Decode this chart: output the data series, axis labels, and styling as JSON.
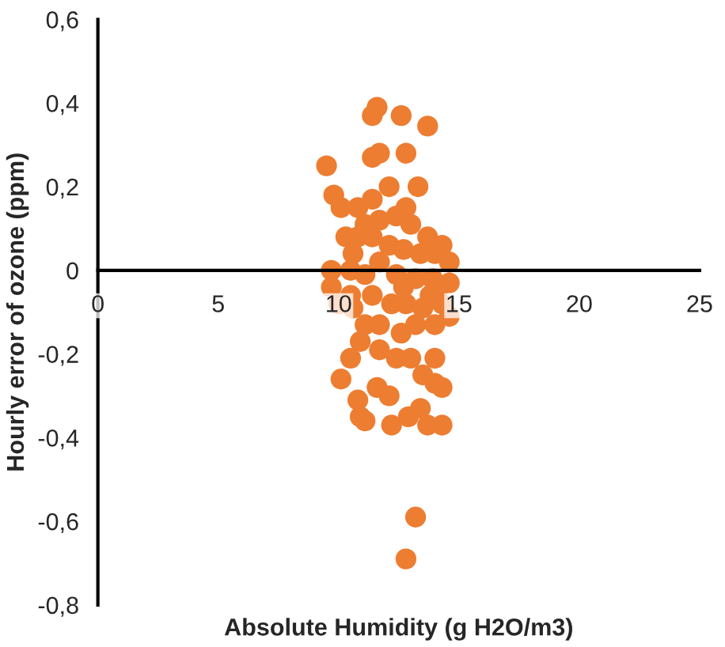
{
  "chart_data": {
    "type": "scatter",
    "xlabel": "Absolute Humidity (g H2O/m3)",
    "ylabel": "Hourly error of ozone (ppm)",
    "xlim": [
      0,
      25
    ],
    "xticks": [
      0,
      5,
      10,
      15,
      20,
      25
    ],
    "ylim": [
      -0.8,
      0.6
    ],
    "yticks": [
      {
        "value": -0.8,
        "label": "-0,8"
      },
      {
        "value": -0.6,
        "label": "-0,6"
      },
      {
        "value": -0.4,
        "label": "-0,4"
      },
      {
        "value": -0.2,
        "label": "-0,2"
      },
      0,
      {
        "value": 0.2,
        "label": "0,2"
      },
      {
        "value": 0.4,
        "label": "0,4"
      },
      {
        "value": 0.6,
        "label": "0,6"
      }
    ],
    "grid": false,
    "marker": "circle",
    "series": [
      {
        "color": "#ed7d31",
        "x": [
          11.6,
          11.4,
          12.6,
          13.7,
          11.4,
          11.7,
          9.5,
          12.1,
          12.8,
          13.3,
          12.8,
          9.8,
          10.1,
          10.8,
          11.4,
          12.4,
          13.0,
          13.7,
          14.3,
          14.6,
          10.3,
          10.8,
          11.4,
          12.1,
          12.7,
          13.4,
          14.0,
          9.7,
          10.5,
          11.1,
          11.7,
          12.4,
          13.2,
          13.9,
          14.6,
          10.5,
          11.4,
          12.2,
          12.8,
          13.5,
          14.3,
          14.6,
          11.1,
          11.7,
          12.6,
          13.2,
          14.0,
          10.9,
          11.7,
          12.4,
          13.0,
          14.0,
          10.5,
          10.1,
          11.6,
          12.1,
          13.5,
          14.0,
          14.3,
          10.8,
          10.9,
          11.1,
          12.2,
          12.9,
          13.4,
          13.7,
          14.3,
          13.2,
          12.8,
          10.6,
          11.1,
          11.7,
          10.0,
          10.6,
          12.7,
          14.2,
          13.8,
          9.7
        ],
        "values": [
          0.39,
          0.37,
          0.37,
          0.345,
          0.27,
          0.28,
          0.25,
          0.2,
          0.28,
          0.2,
          0.15,
          0.18,
          0.15,
          0.15,
          0.17,
          0.13,
          0.11,
          0.08,
          0.06,
          0.02,
          0.08,
          0.08,
          0.08,
          0.06,
          0.05,
          0.04,
          0.04,
          0.0,
          0.0,
          -0.01,
          0.02,
          -0.01,
          -0.02,
          -0.02,
          -0.03,
          -0.06,
          -0.06,
          -0.08,
          -0.08,
          -0.09,
          -0.08,
          -0.11,
          -0.13,
          -0.13,
          -0.15,
          -0.13,
          -0.13,
          -0.17,
          -0.19,
          -0.21,
          -0.21,
          -0.21,
          -0.21,
          -0.26,
          -0.28,
          -0.3,
          -0.25,
          -0.27,
          -0.28,
          -0.31,
          -0.35,
          -0.36,
          -0.37,
          -0.35,
          -0.33,
          -0.37,
          -0.37,
          -0.59,
          -0.69,
          0.04,
          0.11,
          0.12,
          -0.08,
          -0.09,
          -0.04,
          -0.04,
          -0.06,
          -0.04
        ]
      }
    ]
  }
}
